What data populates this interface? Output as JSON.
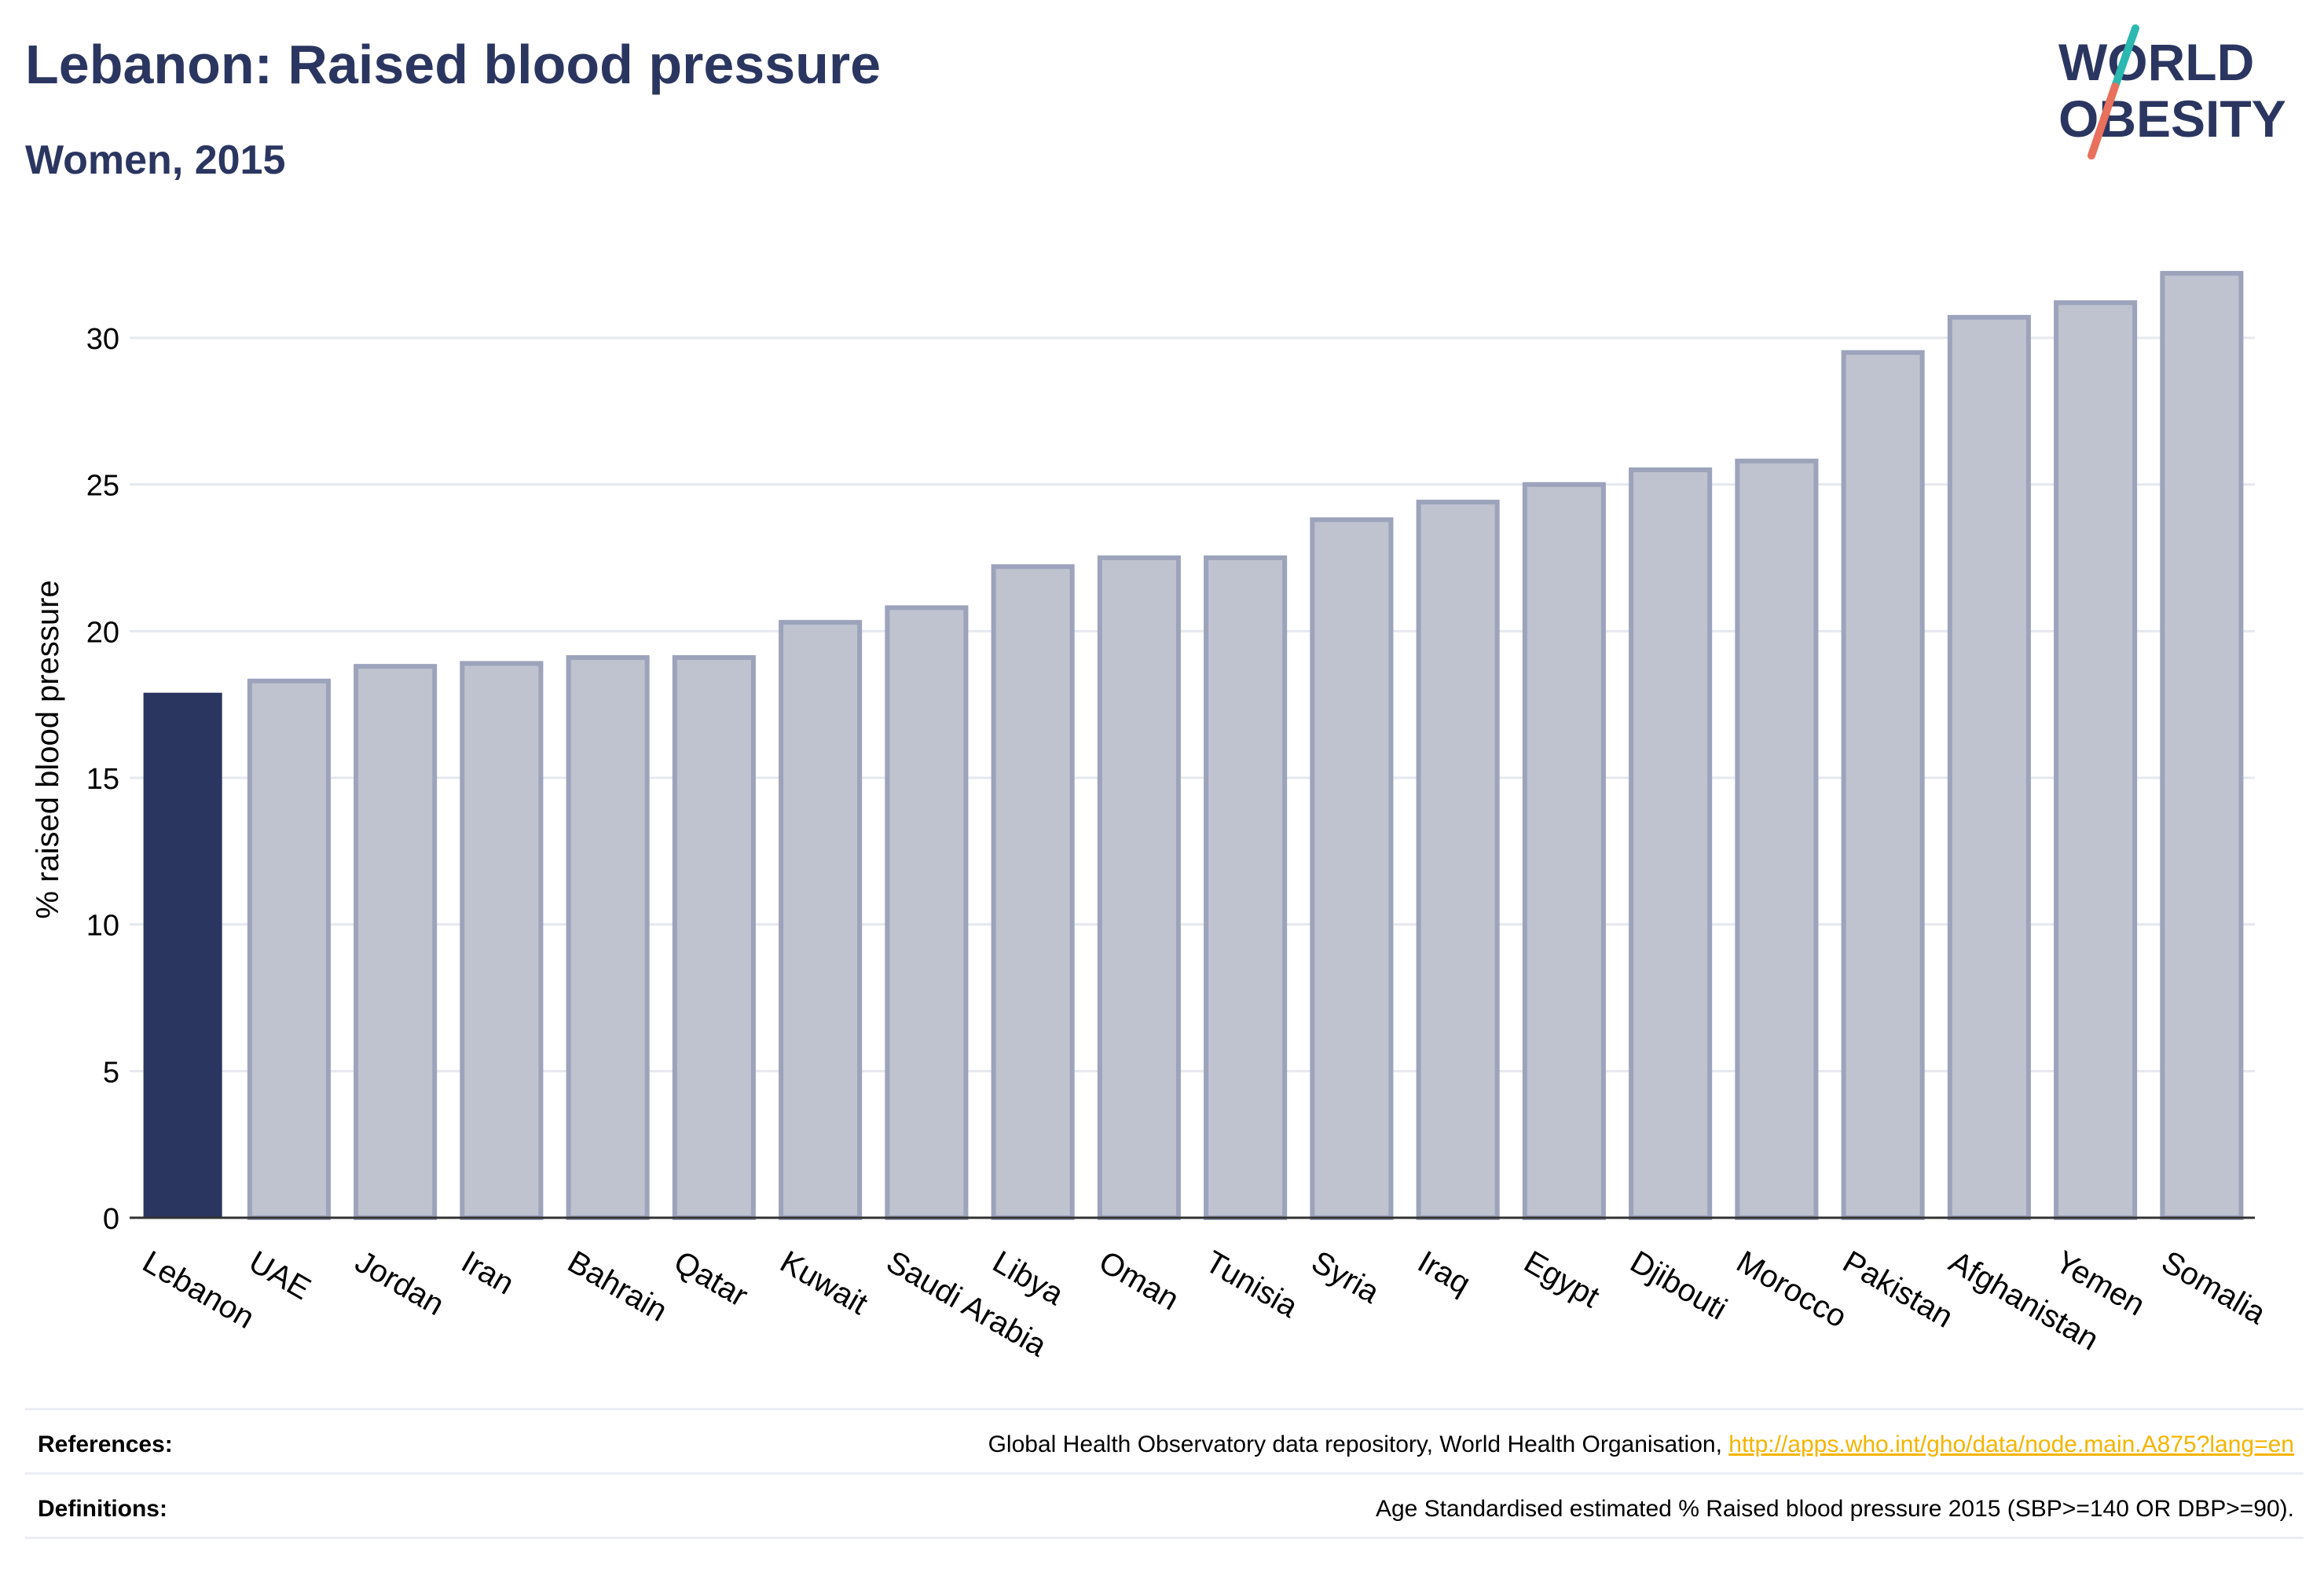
{
  "header": {
    "title": "Lebanon: Raised blood pressure",
    "subtitle": "Women, 2015"
  },
  "logo": {
    "line1": "WORLD",
    "line2": "OBESITY",
    "colors": {
      "text": "#2b3660",
      "slash_top": "#2bb8b0",
      "slash_bottom": "#e8705c"
    }
  },
  "chart_data": {
    "type": "bar",
    "categories": [
      "Lebanon",
      "UAE",
      "Jordan",
      "Iran",
      "Bahrain",
      "Qatar",
      "Kuwait",
      "Saudi Arabia",
      "Libya",
      "Oman",
      "Tunisia",
      "Syria",
      "Iraq",
      "Egypt",
      "Djibouti",
      "Morocco",
      "Pakistan",
      "Afghanistan",
      "Yemen",
      "Somalia"
    ],
    "values": [
      17.9,
      18.3,
      18.8,
      18.9,
      19.1,
      19.1,
      20.3,
      20.8,
      22.2,
      22.5,
      22.5,
      23.8,
      24.4,
      25.0,
      25.5,
      25.8,
      29.5,
      30.7,
      31.2,
      32.2
    ],
    "highlight": "Lebanon",
    "ylabel": "% raised blood pressure",
    "xlabel": "",
    "ylim": [
      0,
      33
    ],
    "yticks": [
      0,
      5,
      10,
      15,
      20,
      25,
      30
    ],
    "grid": true,
    "colors": {
      "highlight": "#2b3660",
      "bar_fill": "#bfc3cf",
      "bar_stroke": "#9ca3bb"
    }
  },
  "footer": {
    "references_label": "References:",
    "references_text": "Global Health Observatory data repository, World Health Organisation, ",
    "references_link": "http://apps.who.int/gho/data/node.main.A875?lang=en",
    "definitions_label": "Definitions:",
    "definitions_text": "Age Standardised estimated % Raised blood pressure 2015 (SBP>=140 OR DBP>=90)."
  }
}
